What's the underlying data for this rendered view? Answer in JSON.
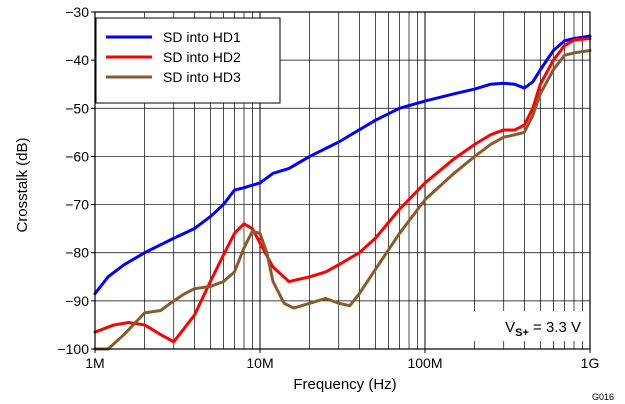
{
  "chart_data": {
    "type": "line",
    "xlabel": "Frequency (Hz)",
    "ylabel": "Crosstalk (dB)",
    "xscale": "log",
    "xlim": [
      1000000,
      1000000000
    ],
    "ylim": [
      -100,
      -30
    ],
    "grid": true,
    "legend_position": "top-left",
    "x_ticks": [
      {
        "value": 1000000,
        "label": "1M"
      },
      {
        "value": 10000000,
        "label": "10M"
      },
      {
        "value": 100000000,
        "label": "100M"
      },
      {
        "value": 1000000000,
        "label": "1G"
      }
    ],
    "y_ticks": [
      {
        "value": -30,
        "label": "−30"
      },
      {
        "value": -40,
        "label": "−40"
      },
      {
        "value": -50,
        "label": "−50"
      },
      {
        "value": -60,
        "label": "−60"
      },
      {
        "value": -70,
        "label": "−70"
      },
      {
        "value": -80,
        "label": "−80"
      },
      {
        "value": -90,
        "label": "−90"
      },
      {
        "value": -100,
        "label": "−100"
      }
    ],
    "annotation": {
      "prefix": "V",
      "subscript": "S+",
      "suffix": " = 3.3 V"
    },
    "figure_id": "G016",
    "series": [
      {
        "name": "SD into HD1",
        "color": "#0000ff",
        "x": [
          1000000,
          1200000,
          1500000,
          2000000,
          3000000,
          4000000,
          5000000,
          6000000,
          7000000,
          8000000,
          10000000,
          12000000,
          15000000,
          20000000,
          30000000,
          50000000,
          70000000,
          100000000,
          150000000,
          200000000,
          250000000,
          300000000,
          350000000,
          400000000,
          450000000,
          500000000,
          600000000,
          700000000,
          800000000,
          1000000000
        ],
        "y": [
          -88.5,
          -85,
          -82.5,
          -80,
          -77,
          -75,
          -72.5,
          -70,
          -67,
          -66.5,
          -65.5,
          -63.5,
          -62.5,
          -60,
          -57,
          -52.5,
          -50,
          -48.5,
          -47,
          -46,
          -45,
          -44.8,
          -45,
          -45.8,
          -44.5,
          -42,
          -38,
          -36,
          -35.5,
          -35
        ]
      },
      {
        "name": "SD into HD2",
        "color": "#ff0000",
        "x": [
          1000000,
          1300000,
          1600000,
          2000000,
          2500000,
          3000000,
          4000000,
          5000000,
          6000000,
          7000000,
          8000000,
          9000000,
          10000000,
          12000000,
          15000000,
          20000000,
          25000000,
          30000000,
          40000000,
          50000000,
          70000000,
          100000000,
          150000000,
          200000000,
          250000000,
          300000000,
          350000000,
          400000000,
          450000000,
          500000000,
          600000000,
          700000000,
          800000000,
          1000000000
        ],
        "y": [
          -96.5,
          -95,
          -94.5,
          -95,
          -97,
          -98.5,
          -93,
          -86,
          -80.5,
          -76,
          -74,
          -75,
          -78,
          -83,
          -86,
          -85,
          -84,
          -82.5,
          -80,
          -77,
          -71,
          -65.5,
          -60.5,
          -57.5,
          -55.5,
          -54.5,
          -54.5,
          -53.5,
          -50,
          -45,
          -40,
          -37,
          -35.8,
          -35.5
        ]
      },
      {
        "name": "SD into HD3",
        "color": "#8b5a2b",
        "x": [
          1000000,
          1200000,
          1500000,
          2000000,
          2500000,
          3000000,
          3500000,
          4000000,
          5000000,
          6000000,
          7000000,
          8000000,
          9000000,
          10000000,
          11000000,
          12000000,
          14000000,
          16000000,
          20000000,
          25000000,
          30000000,
          35000000,
          40000000,
          50000000,
          70000000,
          100000000,
          150000000,
          200000000,
          250000000,
          300000000,
          350000000,
          400000000,
          450000000,
          500000000,
          600000000,
          700000000,
          800000000,
          1000000000
        ],
        "y": [
          -100,
          -100,
          -97,
          -92.5,
          -92,
          -90,
          -88.5,
          -87.5,
          -87,
          -86,
          -84,
          -79,
          -75.5,
          -76,
          -80,
          -86,
          -90.5,
          -91.5,
          -90.5,
          -89.5,
          -90.5,
          -91,
          -88.5,
          -83.5,
          -76,
          -69,
          -63.5,
          -60,
          -57.5,
          -56,
          -55.5,
          -55,
          -51.5,
          -47,
          -42,
          -39,
          -38.5,
          -38
        ]
      }
    ]
  }
}
